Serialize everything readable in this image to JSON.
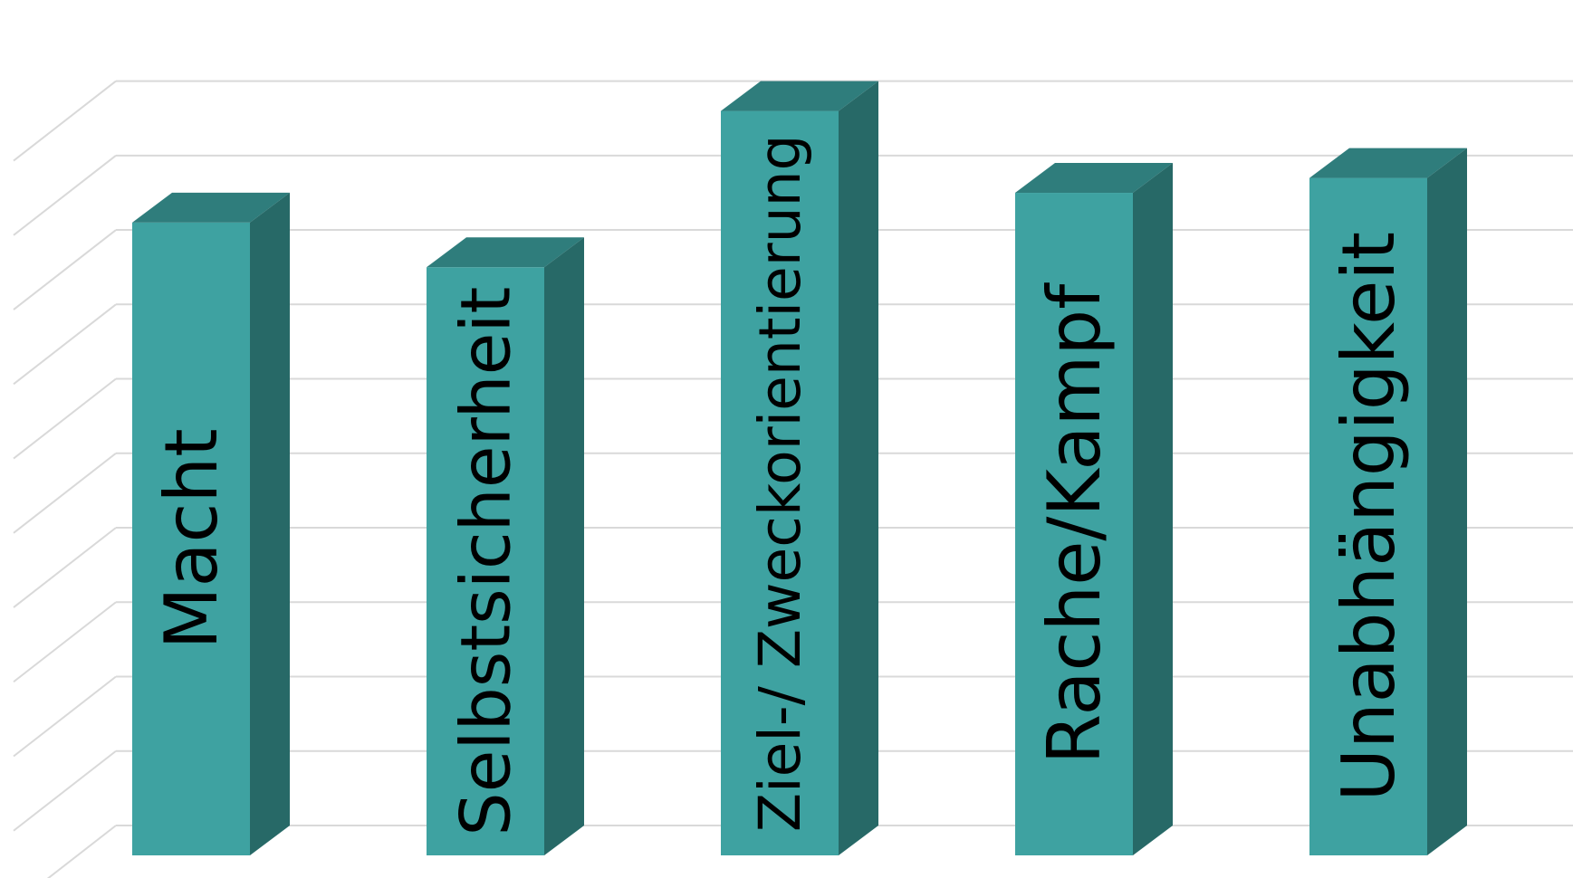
{
  "chart_data": {
    "type": "bar",
    "style": "3d-column",
    "categories": [
      "Macht",
      "Selbstsicherheit",
      "Ziel-/ Zweckorientierung",
      "Rache/Kampf",
      "Unabhängigkeit"
    ],
    "values": [
      8.5,
      7.9,
      10.0,
      8.9,
      9.1
    ],
    "ylim": [
      0,
      10.7
    ],
    "grid": true,
    "axis_labels_visible": false,
    "legend": "none",
    "colors": {
      "front": "#3ea2a1",
      "top": "#2f7d7c",
      "side": "#276967",
      "grid": "#d9d9d9",
      "label": "#000000"
    }
  }
}
